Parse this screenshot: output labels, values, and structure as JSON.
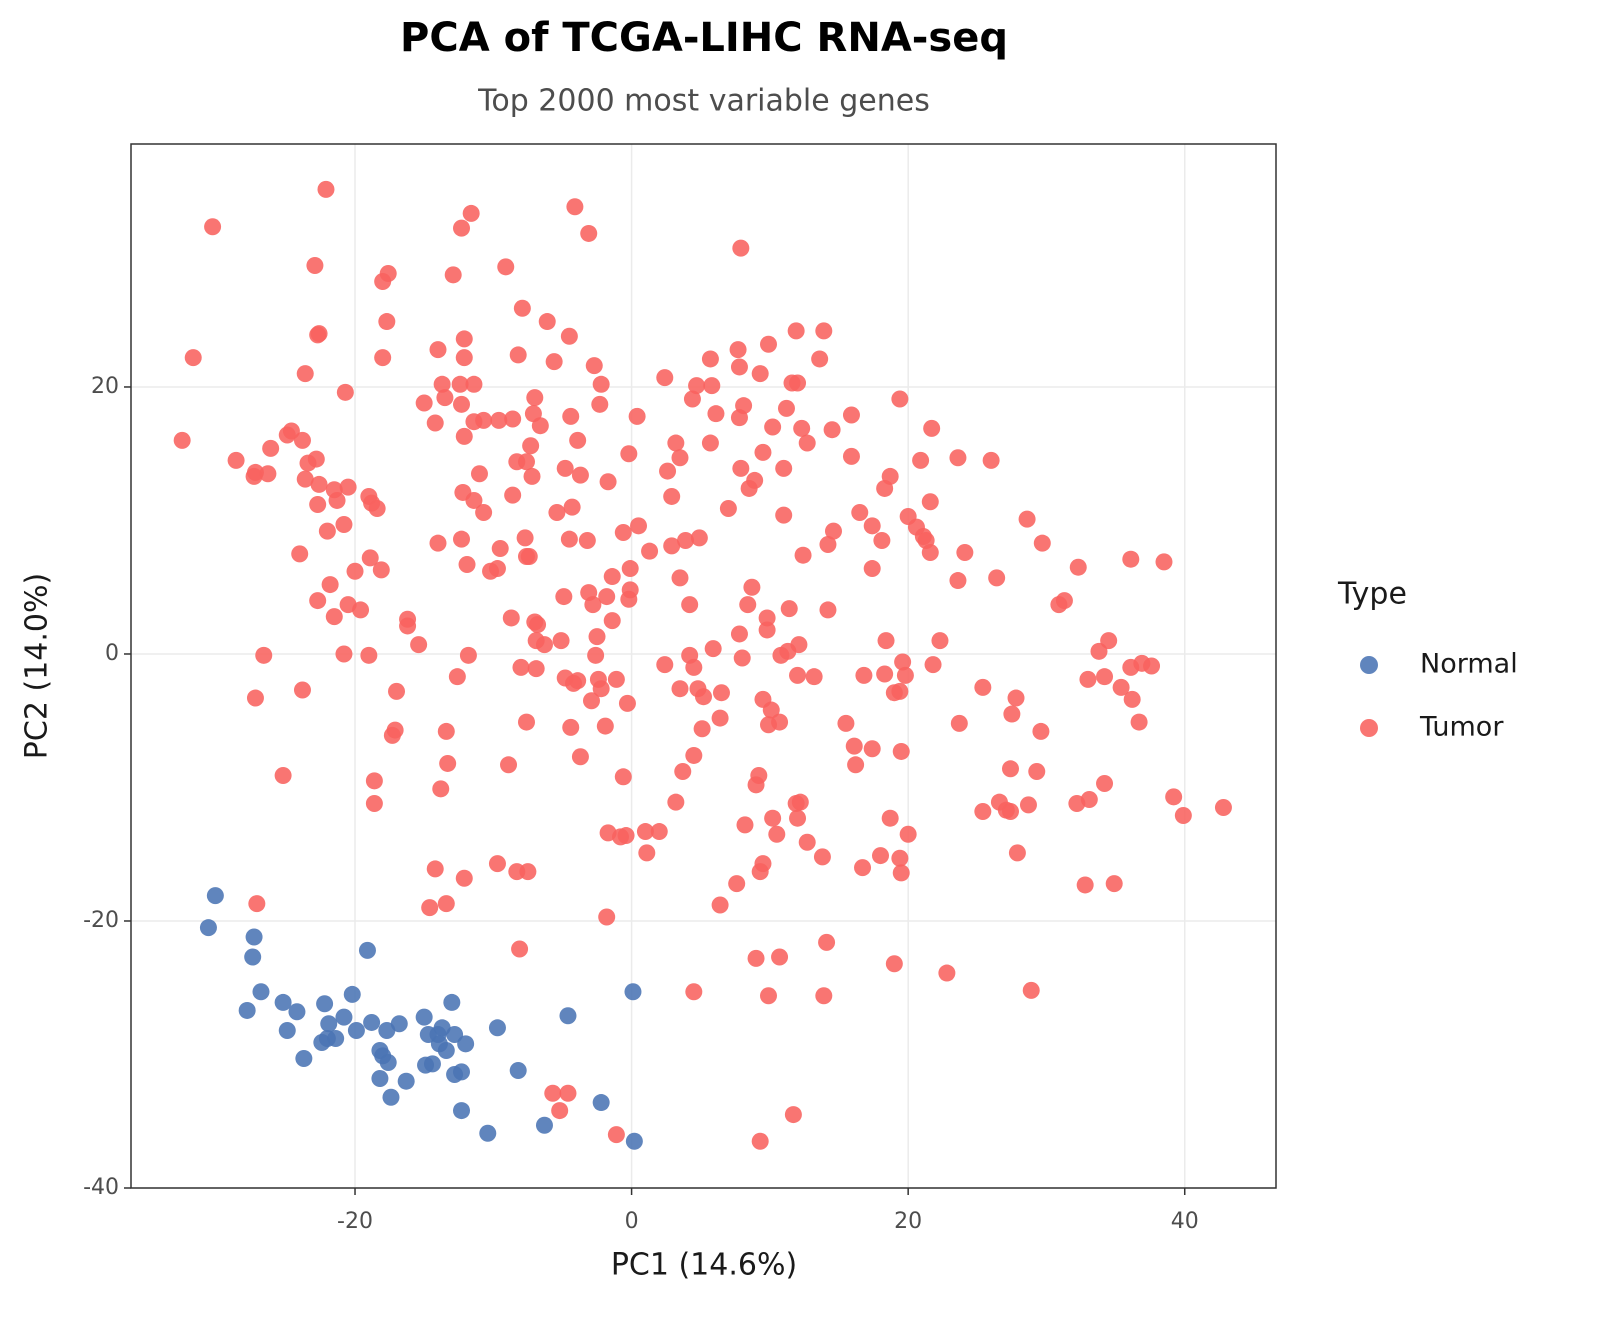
{
  "chart_data": {
    "type": "scatter",
    "title": "PCA of TCGA-LIHC RNA-seq",
    "subtitle": "Top 2000 most variable genes",
    "x_label": "PC1 (14.6%)",
    "y_label": "PC2 (14.0%)",
    "legend_title": "Type",
    "legend_position": "right",
    "grid": true,
    "xlim": [
      -36.2,
      46.6
    ],
    "ylim": [
      -40,
      38.2
    ],
    "xticks": [
      -20,
      0,
      20,
      40
    ],
    "yticks": [
      -40,
      -20,
      0,
      20
    ],
    "series": [
      {
        "name": "Normal",
        "color": "#4a74b4",
        "x": [
          -30.1,
          -30.6,
          -27.3,
          -27.4,
          -19.1,
          -26.8,
          -27.8,
          -25.2,
          -24.2,
          -24.9,
          -22.2,
          -20.2,
          -20.8,
          -21.9,
          -22.0,
          -21.4,
          -22.4,
          -23.7,
          -19.9,
          -18.8,
          -17.7,
          -16.8,
          -18.2,
          -18.0,
          -17.6,
          -18.2,
          -16.3,
          -17.4,
          -15.0,
          -14.7,
          -14.0,
          -13.7,
          -12.8,
          -12.0,
          -13.4,
          -13.9,
          -13.0,
          -14.9,
          -14.4,
          -12.8,
          -12.3,
          -12.3,
          -9.7,
          -8.2,
          -10.4,
          -6.3,
          -4.6,
          -2.2,
          0.1,
          0.2
        ],
        "values": [
          -18.1,
          -20.5,
          -21.2,
          -22.7,
          -22.2,
          -25.3,
          -26.7,
          -26.1,
          -26.8,
          -28.2,
          -26.2,
          -25.5,
          -27.2,
          -27.7,
          -28.8,
          -28.8,
          -29.1,
          -30.3,
          -28.2,
          -27.6,
          -28.2,
          -27.7,
          -29.7,
          -30.1,
          -30.6,
          -31.8,
          -32.0,
          -33.2,
          -27.2,
          -28.5,
          -28.5,
          -28.0,
          -28.5,
          -29.2,
          -29.7,
          -29.2,
          -26.1,
          -30.8,
          -30.7,
          -31.5,
          -31.3,
          -34.2,
          -28.0,
          -31.2,
          -35.9,
          -35.3,
          -27.1,
          -33.6,
          -25.3,
          -36.5
        ]
      },
      {
        "name": "Tumor",
        "color": "#f8625f",
        "x": [
          -22.1,
          -30.3,
          -11.6,
          -12.3,
          -4.1,
          -3.1,
          7.9,
          -22.9,
          -17.6,
          -18.0,
          -12.9,
          -9.1,
          -7.9,
          -6.1,
          -17.7,
          -22.6,
          -22.7,
          -12.1,
          -4.5,
          11.9,
          13.9,
          -31.7,
          -18.0,
          -14.0,
          -12.1,
          -8.2,
          -5.6,
          -2.7,
          7.7,
          9.9,
          5.7,
          13.6,
          -23.6,
          2.4,
          7.8,
          9.3,
          11.6,
          12.0,
          -2.2,
          -13.7,
          -12.4,
          -11.4,
          4.7,
          5.8,
          -20.7,
          -7.0,
          4.4,
          19.4,
          -15.0,
          -13.5,
          -12.3,
          -2.3,
          8.1,
          11.2,
          -7.1,
          -4.4,
          0.4,
          6.1,
          7.8,
          15.9,
          -10.7,
          -9.6,
          -8.6,
          -11.4,
          -14.2,
          -6.6,
          10.2,
          12.3,
          14.5,
          21.7,
          -24.6,
          -24.9,
          -23.8,
          -32.5,
          -26.1,
          -12.1,
          -3.9,
          3.2,
          5.7,
          12.7,
          -7.3,
          -0.2,
          9.5,
          15.9,
          3.5,
          20.9,
          23.6,
          26.0,
          -28.6,
          -22.8,
          -23.4,
          -8.3,
          -7.6,
          -4.8,
          7.9,
          11.0,
          2.6,
          -27.2,
          -26.3,
          -27.3,
          -11.0,
          -7.2,
          -3.7,
          18.7,
          -23.6,
          -22.6,
          -1.7,
          8.9,
          8.5,
          18.3,
          -20.5,
          -21.5,
          -12.2,
          -19.0,
          2.9,
          -8.6,
          -11.4,
          -18.8,
          -18.4,
          -22.7,
          -21.3,
          21.6,
          -10.7,
          -4.3,
          -5.4,
          7.0,
          11.0,
          16.5,
          28.6,
          20.0,
          17.4,
          -20.8,
          -22.0,
          0.5,
          20.6,
          21.1,
          21.3,
          -0.6,
          14.6,
          -14.0,
          -12.3,
          -4.5,
          -3.2,
          -7.7,
          3.9,
          4.9,
          2.9,
          14.2,
          18.1,
          29.7,
          -9.5,
          1.3,
          21.6,
          24.1,
          -24.0,
          -7.4,
          -7.6,
          -18.9,
          12.4,
          36.1,
          38.5,
          -11.9,
          17.4,
          -0.1,
          -20.0,
          -18.1,
          -10.2,
          -9.7,
          32.3,
          -1.4,
          3.5,
          26.4,
          23.6,
          -21.8,
          8.7,
          -3.1,
          -0.1,
          -4.9,
          -0.2,
          -1.8,
          8.4,
          -22.7,
          -20.5,
          -19.6,
          -2.8,
          4.2,
          31.3,
          30.9,
          11.4,
          14.2,
          -21.5,
          -16.2,
          -16.2,
          -8.7,
          -7.0,
          -6.8,
          -1.4,
          9.8,
          9.8,
          7.8,
          -2.5,
          -5.1,
          -6.9,
          -6.3,
          -15.4,
          12.1,
          18.4,
          22.3,
          34.5,
          5.9,
          11.3,
          33.8,
          -26.6,
          -20.8,
          -19.0,
          -11.8,
          -2.6,
          4.2,
          10.8,
          8.0,
          19.6,
          36.1,
          37.6,
          36.9,
          -8.0,
          2.4,
          4.5,
          21.8,
          16.8,
          18.3,
          19.8,
          12.0,
          13.2,
          33.0,
          34.2,
          -12.6,
          -6.9,
          -4.8,
          -3.9,
          -2.4,
          -4.2,
          -1.1,
          35.4,
          -23.8,
          -17.0,
          -2.2,
          3.5,
          4.8,
          6.5,
          25.4,
          19.4,
          19.0,
          -27.2,
          -2.9,
          5.2,
          9.5,
          27.8,
          36.2,
          -0.3,
          10.1,
          27.5,
          6.4,
          -7.6,
          10.7,
          36.7,
          -4.4,
          -1.9,
          9.9,
          15.5,
          23.7,
          5.1,
          -17.1,
          -17.3,
          -13.4,
          29.6,
          16.1,
          17.4,
          19.5,
          4.5,
          -3.7,
          -13.3,
          -8.9,
          16.2,
          3.7,
          27.4,
          29.3,
          -25.2,
          -18.6,
          -0.6,
          9.2,
          9.0,
          34.2,
          -13.8,
          39.2,
          33.1,
          3.2,
          12.2,
          11.9,
          26.6,
          28.7,
          32.2,
          42.8,
          -18.6,
          27.1,
          25.4,
          27.4,
          39.9,
          10.2,
          12.0,
          18.7,
          8.2,
          10.5,
          20.0,
          -1.7,
          -0.8,
          -0.4,
          1.0,
          2.0,
          12.7,
          1.1,
          27.9,
          13.8,
          18.0,
          19.4,
          -9.7,
          9.5,
          9.3,
          -14.2,
          16.7,
          19.5,
          -8.3,
          -7.5,
          -12.1,
          7.6,
          32.8,
          34.9,
          -13.4,
          -14.6,
          -27.1,
          6.4,
          -1.8,
          -8.1,
          14.1,
          9.0,
          10.7,
          19.0,
          22.8,
          4.5,
          28.9,
          9.9,
          13.9,
          -5.7,
          -4.6,
          -5.2,
          11.7,
          -1.1,
          9.3
        ],
        "values": [
          34.8,
          32.0,
          33.0,
          31.9,
          33.5,
          31.5,
          30.4,
          29.1,
          28.5,
          27.9,
          28.4,
          29.0,
          25.9,
          24.9,
          24.9,
          24.0,
          23.9,
          23.6,
          23.8,
          24.2,
          24.2,
          22.2,
          22.2,
          22.8,
          22.2,
          22.4,
          21.9,
          21.6,
          22.8,
          23.2,
          22.1,
          22.1,
          21.0,
          20.7,
          21.5,
          21.0,
          20.3,
          20.3,
          20.2,
          20.2,
          20.2,
          20.2,
          20.1,
          20.1,
          19.6,
          19.2,
          19.1,
          19.1,
          18.8,
          19.2,
          18.7,
          18.7,
          18.6,
          18.4,
          18.0,
          17.8,
          17.8,
          18.0,
          17.7,
          17.9,
          17.5,
          17.5,
          17.6,
          17.4,
          17.3,
          17.1,
          17.0,
          16.9,
          16.8,
          16.9,
          16.7,
          16.4,
          16.0,
          16.0,
          15.4,
          16.3,
          16.0,
          15.8,
          15.8,
          15.8,
          15.6,
          15.0,
          15.1,
          14.8,
          14.7,
          14.5,
          14.7,
          14.5,
          14.5,
          14.6,
          14.3,
          14.4,
          14.4,
          13.9,
          13.9,
          13.9,
          13.7,
          13.6,
          13.5,
          13.3,
          13.5,
          13.3,
          13.4,
          13.3,
          13.1,
          12.7,
          12.9,
          13.0,
          12.4,
          12.4,
          12.5,
          12.3,
          12.1,
          11.8,
          11.8,
          11.9,
          11.5,
          11.3,
          10.9,
          11.2,
          11.5,
          11.4,
          10.6,
          11.0,
          10.6,
          10.9,
          10.4,
          10.6,
          10.1,
          10.3,
          9.6,
          9.7,
          9.2,
          9.6,
          9.5,
          8.8,
          8.5,
          9.1,
          9.2,
          8.3,
          8.6,
          8.6,
          8.5,
          8.7,
          8.5,
          8.7,
          8.1,
          8.2,
          8.5,
          8.3,
          7.9,
          7.7,
          7.6,
          7.6,
          7.5,
          7.3,
          7.3,
          7.2,
          7.4,
          7.1,
          6.9,
          6.7,
          6.4,
          6.4,
          6.2,
          6.3,
          6.2,
          6.4,
          6.5,
          5.8,
          5.7,
          5.7,
          5.5,
          5.2,
          5.0,
          4.6,
          4.8,
          4.3,
          4.1,
          4.3,
          3.7,
          4.0,
          3.7,
          3.3,
          3.7,
          3.7,
          4.0,
          3.7,
          3.4,
          3.3,
          2.8,
          2.6,
          2.1,
          2.7,
          2.4,
          2.2,
          2.5,
          2.7,
          1.8,
          1.5,
          1.3,
          1.0,
          1.0,
          0.7,
          0.7,
          0.7,
          1.0,
          1.0,
          1.0,
          0.4,
          0.2,
          0.2,
          -0.1,
          0.0,
          -0.1,
          -0.1,
          -0.1,
          -0.1,
          -0.1,
          -0.3,
          -0.6,
          -1.0,
          -0.9,
          -0.7,
          -1.0,
          -0.8,
          -1.0,
          -0.8,
          -1.6,
          -1.5,
          -1.6,
          -1.6,
          -1.7,
          -1.9,
          -1.7,
          -1.7,
          -1.1,
          -1.8,
          -2.0,
          -1.9,
          -2.2,
          -1.9,
          -2.5,
          -2.7,
          -2.8,
          -2.6,
          -2.6,
          -2.6,
          -2.9,
          -2.5,
          -2.8,
          -2.9,
          -3.3,
          -3.5,
          -3.2,
          -3.4,
          -3.3,
          -3.4,
          -3.7,
          -4.2,
          -4.5,
          -4.8,
          -5.1,
          -5.1,
          -5.1,
          -5.5,
          -5.4,
          -5.3,
          -5.2,
          -5.2,
          -5.6,
          -5.7,
          -6.1,
          -5.8,
          -5.8,
          -6.9,
          -7.1,
          -7.3,
          -7.6,
          -7.7,
          -8.2,
          -8.3,
          -8.3,
          -8.8,
          -8.6,
          -8.8,
          -9.1,
          -9.5,
          -9.2,
          -9.1,
          -9.8,
          -9.7,
          -10.1,
          -10.7,
          -10.9,
          -11.1,
          -11.1,
          -11.2,
          -11.1,
          -11.3,
          -11.2,
          -11.5,
          -11.2,
          -11.7,
          -11.8,
          -11.8,
          -12.1,
          -12.3,
          -12.3,
          -12.3,
          -12.8,
          -13.5,
          -13.5,
          -13.4,
          -13.7,
          -13.6,
          -13.3,
          -13.3,
          -14.1,
          -14.9,
          -14.9,
          -15.2,
          -15.1,
          -15.3,
          -15.7,
          -15.7,
          -16.3,
          -16.1,
          -16.0,
          -16.4,
          -16.3,
          -16.3,
          -16.8,
          -17.2,
          -17.3,
          -17.2,
          -18.7,
          -19.0,
          -18.7,
          -18.8,
          -19.7,
          -22.1,
          -21.6,
          -22.8,
          -22.7,
          -23.2,
          -23.9,
          -25.3,
          -25.2,
          -25.6,
          -25.6,
          -32.9,
          -32.9,
          -34.2,
          -34.5,
          -36.0,
          -36.5
        ]
      }
    ]
  }
}
